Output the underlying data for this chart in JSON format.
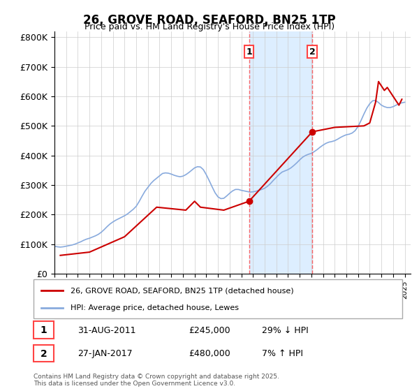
{
  "title": "26, GROVE ROAD, SEAFORD, BN25 1TP",
  "subtitle": "Price paid vs. HM Land Registry's House Price Index (HPI)",
  "ylabel_ticks": [
    0,
    100000,
    200000,
    300000,
    400000,
    500000,
    600000,
    700000,
    800000
  ],
  "ylabel_labels": [
    "£0",
    "£100K",
    "£200K",
    "£300K",
    "£400K",
    "£500K",
    "£600K",
    "£700K",
    "£800K"
  ],
  "xlim_start": 1995.0,
  "xlim_end": 2025.5,
  "ylim": [
    0,
    820000
  ],
  "vline1_x": 2011.66,
  "vline2_x": 2017.08,
  "vline1_label": "1",
  "vline2_label": "2",
  "shade_color": "#ddeeff",
  "vline_color": "#ff4444",
  "red_line_color": "#cc0000",
  "blue_line_color": "#88aadd",
  "legend_line1": "26, GROVE ROAD, SEAFORD, BN25 1TP (detached house)",
  "legend_line2": "HPI: Average price, detached house, Lewes",
  "annotation1_num": "1",
  "annotation1_date": "31-AUG-2011",
  "annotation1_price": "£245,000",
  "annotation1_hpi": "29% ↓ HPI",
  "annotation2_num": "2",
  "annotation2_date": "27-JAN-2017",
  "annotation2_price": "£480,000",
  "annotation2_hpi": "7% ↑ HPI",
  "footer": "Contains HM Land Registry data © Crown copyright and database right 2025.\nThis data is licensed under the Open Government Licence v3.0.",
  "hpi_data_x": [
    1995.0,
    1995.25,
    1995.5,
    1995.75,
    1996.0,
    1996.25,
    1996.5,
    1996.75,
    1997.0,
    1997.25,
    1997.5,
    1997.75,
    1998.0,
    1998.25,
    1998.5,
    1998.75,
    1999.0,
    1999.25,
    1999.5,
    1999.75,
    2000.0,
    2000.25,
    2000.5,
    2000.75,
    2001.0,
    2001.25,
    2001.5,
    2001.75,
    2002.0,
    2002.25,
    2002.5,
    2002.75,
    2003.0,
    2003.25,
    2003.5,
    2003.75,
    2004.0,
    2004.25,
    2004.5,
    2004.75,
    2005.0,
    2005.25,
    2005.5,
    2005.75,
    2006.0,
    2006.25,
    2006.5,
    2006.75,
    2007.0,
    2007.25,
    2007.5,
    2007.75,
    2008.0,
    2008.25,
    2008.5,
    2008.75,
    2009.0,
    2009.25,
    2009.5,
    2009.75,
    2010.0,
    2010.25,
    2010.5,
    2010.75,
    2011.0,
    2011.25,
    2011.5,
    2011.75,
    2012.0,
    2012.25,
    2012.5,
    2012.75,
    2013.0,
    2013.25,
    2013.5,
    2013.75,
    2014.0,
    2014.25,
    2014.5,
    2014.75,
    2015.0,
    2015.25,
    2015.5,
    2015.75,
    2016.0,
    2016.25,
    2016.5,
    2016.75,
    2017.0,
    2017.25,
    2017.5,
    2017.75,
    2018.0,
    2018.25,
    2018.5,
    2018.75,
    2019.0,
    2019.25,
    2019.5,
    2019.75,
    2020.0,
    2020.25,
    2020.5,
    2020.75,
    2021.0,
    2021.25,
    2021.5,
    2021.75,
    2022.0,
    2022.25,
    2022.5,
    2022.75,
    2023.0,
    2023.25,
    2023.5,
    2023.75,
    2024.0,
    2024.25,
    2024.5,
    2024.75,
    2025.0
  ],
  "hpi_data_y": [
    93000,
    91000,
    90000,
    91000,
    93000,
    95000,
    97000,
    100000,
    104000,
    108000,
    113000,
    117000,
    120000,
    124000,
    128000,
    133000,
    140000,
    149000,
    159000,
    168000,
    175000,
    181000,
    186000,
    191000,
    196000,
    202000,
    210000,
    218000,
    228000,
    244000,
    262000,
    279000,
    292000,
    305000,
    315000,
    323000,
    331000,
    339000,
    341000,
    340000,
    337000,
    333000,
    330000,
    328000,
    330000,
    335000,
    342000,
    350000,
    358000,
    362000,
    361000,
    352000,
    335000,
    315000,
    294000,
    274000,
    260000,
    254000,
    255000,
    263000,
    272000,
    280000,
    285000,
    285000,
    282000,
    280000,
    278000,
    276000,
    277000,
    279000,
    282000,
    285000,
    289000,
    296000,
    305000,
    316000,
    326000,
    336000,
    344000,
    348000,
    352000,
    358000,
    366000,
    375000,
    385000,
    394000,
    400000,
    404000,
    407000,
    413000,
    420000,
    428000,
    435000,
    441000,
    445000,
    447000,
    450000,
    455000,
    461000,
    466000,
    470000,
    472000,
    476000,
    484000,
    498000,
    518000,
    540000,
    560000,
    575000,
    585000,
    586000,
    579000,
    570000,
    565000,
    562000,
    562000,
    565000,
    570000,
    575000,
    578000,
    580000
  ],
  "price_data": [
    [
      1995.5,
      62000
    ],
    [
      1998.0,
      73000
    ],
    [
      2001.0,
      125000
    ],
    [
      2003.75,
      225000
    ],
    [
      2006.25,
      215000
    ],
    [
      2007.0,
      245000
    ],
    [
      2007.5,
      225000
    ],
    [
      2009.5,
      215000
    ],
    [
      2011.66,
      245000
    ],
    [
      2017.08,
      480000
    ],
    [
      2019.0,
      495000
    ],
    [
      2021.5,
      500000
    ],
    [
      2022.0,
      510000
    ],
    [
      2022.5,
      580000
    ],
    [
      2022.75,
      650000
    ],
    [
      2023.25,
      620000
    ],
    [
      2023.5,
      630000
    ],
    [
      2024.0,
      600000
    ],
    [
      2024.5,
      570000
    ],
    [
      2024.75,
      590000
    ]
  ]
}
